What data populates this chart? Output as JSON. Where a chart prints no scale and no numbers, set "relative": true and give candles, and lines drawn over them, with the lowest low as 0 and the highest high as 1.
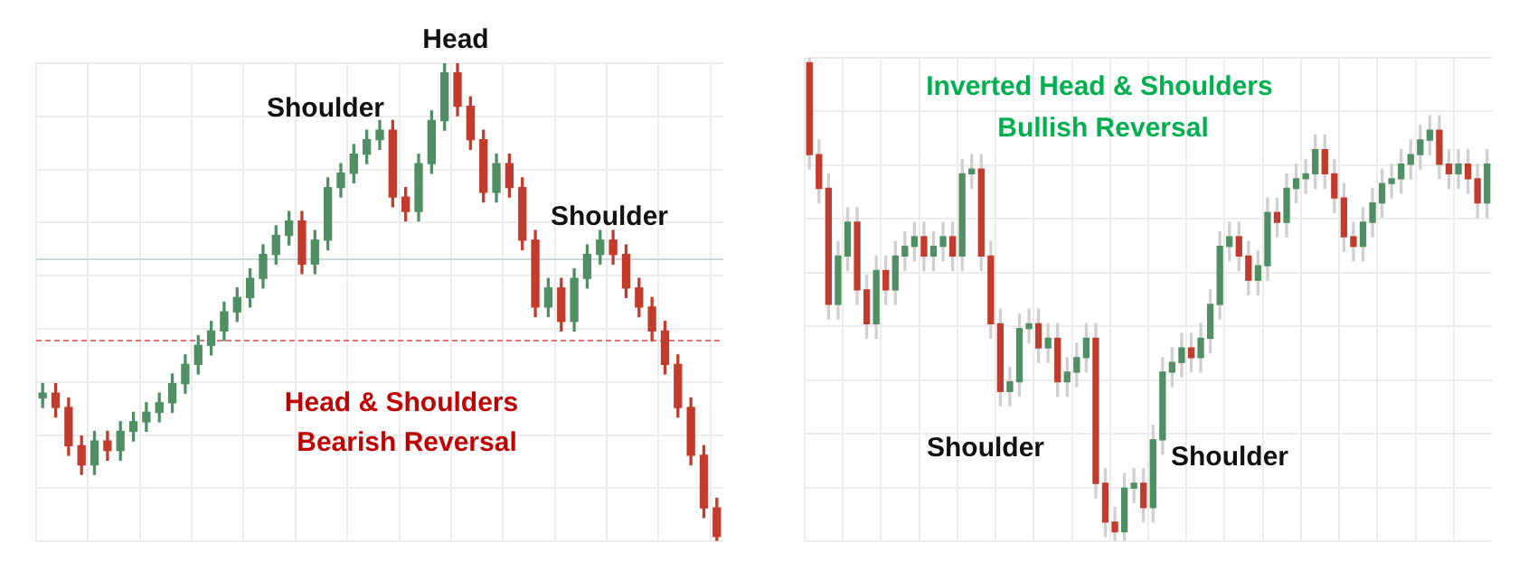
{
  "chart_data": [
    {
      "type": "candlestick",
      "relative": true,
      "grid": true,
      "legend": false,
      "categories": [
        null,
        null,
        null,
        null,
        null,
        null,
        null,
        null,
        null,
        null,
        null,
        null,
        null,
        null,
        null,
        null,
        null,
        null,
        null,
        null,
        null,
        null,
        null,
        null,
        null,
        null,
        null,
        null,
        null,
        null,
        null,
        null,
        null,
        null,
        null,
        null,
        null,
        null,
        null,
        null,
        null,
        null,
        null,
        null,
        null,
        null,
        null,
        null,
        null,
        null,
        null,
        null,
        null
      ],
      "ohlc": [
        [
          0.3,
          0.33,
          0.28,
          0.31
        ],
        [
          0.31,
          0.33,
          0.26,
          0.28
        ],
        [
          0.28,
          0.3,
          0.18,
          0.2
        ],
        [
          0.2,
          0.22,
          0.14,
          0.16
        ],
        [
          0.16,
          0.23,
          0.14,
          0.21
        ],
        [
          0.21,
          0.23,
          0.17,
          0.19
        ],
        [
          0.19,
          0.25,
          0.17,
          0.23
        ],
        [
          0.23,
          0.27,
          0.21,
          0.25
        ],
        [
          0.25,
          0.29,
          0.23,
          0.27
        ],
        [
          0.27,
          0.31,
          0.25,
          0.29
        ],
        [
          0.29,
          0.35,
          0.27,
          0.33
        ],
        [
          0.33,
          0.39,
          0.31,
          0.37
        ],
        [
          0.37,
          0.43,
          0.35,
          0.41
        ],
        [
          0.41,
          0.46,
          0.39,
          0.44
        ],
        [
          0.44,
          0.5,
          0.42,
          0.48
        ],
        [
          0.48,
          0.53,
          0.46,
          0.51
        ],
        [
          0.51,
          0.57,
          0.49,
          0.55
        ],
        [
          0.55,
          0.62,
          0.53,
          0.6
        ],
        [
          0.6,
          0.66,
          0.58,
          0.64
        ],
        [
          0.64,
          0.69,
          0.62,
          0.67
        ],
        [
          0.67,
          0.69,
          0.56,
          0.58
        ],
        [
          0.58,
          0.65,
          0.56,
          0.63
        ],
        [
          0.63,
          0.76,
          0.61,
          0.74
        ],
        [
          0.74,
          0.79,
          0.72,
          0.77
        ],
        [
          0.77,
          0.83,
          0.75,
          0.81
        ],
        [
          0.81,
          0.86,
          0.79,
          0.84
        ],
        [
          0.84,
          0.88,
          0.82,
          0.86
        ],
        [
          0.86,
          0.88,
          0.7,
          0.72
        ],
        [
          0.72,
          0.74,
          0.67,
          0.69
        ],
        [
          0.69,
          0.81,
          0.67,
          0.79
        ],
        [
          0.79,
          0.9,
          0.77,
          0.88
        ],
        [
          0.88,
          1,
          0.86,
          0.98
        ],
        [
          0.98,
          1,
          0.89,
          0.91
        ],
        [
          0.91,
          0.93,
          0.82,
          0.84
        ],
        [
          0.84,
          0.86,
          0.71,
          0.73
        ],
        [
          0.73,
          0.81,
          0.71,
          0.79
        ],
        [
          0.79,
          0.81,
          0.72,
          0.74
        ],
        [
          0.74,
          0.76,
          0.61,
          0.63
        ],
        [
          0.63,
          0.65,
          0.47,
          0.49
        ],
        [
          0.49,
          0.55,
          0.47,
          0.53
        ],
        [
          0.53,
          0.55,
          0.44,
          0.46
        ],
        [
          0.46,
          0.57,
          0.44,
          0.55
        ],
        [
          0.55,
          0.62,
          0.53,
          0.6
        ],
        [
          0.6,
          0.65,
          0.58,
          0.63
        ],
        [
          0.63,
          0.65,
          0.58,
          0.6
        ],
        [
          0.6,
          0.62,
          0.51,
          0.53
        ],
        [
          0.53,
          0.55,
          0.47,
          0.49
        ],
        [
          0.49,
          0.51,
          0.42,
          0.44
        ],
        [
          0.44,
          0.46,
          0.35,
          0.37
        ],
        [
          0.37,
          0.39,
          0.26,
          0.28
        ],
        [
          0.28,
          0.3,
          0.16,
          0.18
        ],
        [
          0.18,
          0.2,
          0.05,
          0.07
        ],
        [
          0.07,
          0.09,
          0,
          0.01
        ]
      ],
      "ref_lines": [
        {
          "axis": "y",
          "value": 0.42,
          "color": "#e57373",
          "line_style": "dashed"
        },
        {
          "axis": "y",
          "value": 0.59,
          "color": "#cfd8dc",
          "line_style": "solid"
        }
      ],
      "annotations": [
        "Shoulder",
        "Head",
        "Shoulder",
        "Head & Shoulders",
        "Bearish Reversal"
      ]
    },
    {
      "type": "candlestick",
      "relative": true,
      "grid": true,
      "legend": false,
      "categories": [
        null,
        null,
        null,
        null,
        null,
        null,
        null,
        null,
        null,
        null,
        null,
        null,
        null,
        null,
        null,
        null,
        null,
        null,
        null,
        null,
        null,
        null,
        null,
        null,
        null,
        null,
        null,
        null,
        null,
        null,
        null,
        null,
        null,
        null,
        null,
        null,
        null,
        null,
        null,
        null,
        null,
        null,
        null,
        null,
        null,
        null,
        null,
        null,
        null,
        null,
        null,
        null,
        null,
        null,
        null,
        null,
        null,
        null,
        null,
        null,
        null,
        null,
        null,
        null,
        null,
        null,
        null,
        null,
        null,
        null,
        null,
        null
      ],
      "ohlc": [
        [
          0.99,
          1,
          0.77,
          0.8
        ],
        [
          0.8,
          0.83,
          0.7,
          0.73
        ],
        [
          0.73,
          0.76,
          0.46,
          0.49
        ],
        [
          0.49,
          0.62,
          0.46,
          0.59
        ],
        [
          0.59,
          0.69,
          0.56,
          0.66
        ],
        [
          0.66,
          0.69,
          0.49,
          0.52
        ],
        [
          0.52,
          0.55,
          0.42,
          0.45
        ],
        [
          0.45,
          0.59,
          0.42,
          0.56
        ],
        [
          0.56,
          0.59,
          0.49,
          0.52
        ],
        [
          0.52,
          0.62,
          0.49,
          0.59
        ],
        [
          0.59,
          0.64,
          0.56,
          0.61
        ],
        [
          0.61,
          0.66,
          0.58,
          0.63
        ],
        [
          0.63,
          0.66,
          0.56,
          0.59
        ],
        [
          0.59,
          0.64,
          0.56,
          0.61
        ],
        [
          0.61,
          0.66,
          0.58,
          0.63
        ],
        [
          0.63,
          0.66,
          0.56,
          0.59
        ],
        [
          0.59,
          0.79,
          0.56,
          0.76
        ],
        [
          0.76,
          0.8,
          0.73,
          0.77
        ],
        [
          0.77,
          0.8,
          0.56,
          0.59
        ],
        [
          0.59,
          0.62,
          0.42,
          0.45
        ],
        [
          0.45,
          0.48,
          0.28,
          0.31
        ],
        [
          0.31,
          0.36,
          0.28,
          0.33
        ],
        [
          0.33,
          0.47,
          0.3,
          0.44
        ],
        [
          0.44,
          0.48,
          0.41,
          0.45
        ],
        [
          0.45,
          0.48,
          0.37,
          0.4
        ],
        [
          0.4,
          0.45,
          0.37,
          0.42
        ],
        [
          0.42,
          0.45,
          0.3,
          0.33
        ],
        [
          0.33,
          0.38,
          0.3,
          0.35
        ],
        [
          0.35,
          0.41,
          0.32,
          0.38
        ],
        [
          0.38,
          0.45,
          0.35,
          0.42
        ],
        [
          0.42,
          0.45,
          0.09,
          0.12
        ],
        [
          0.12,
          0.15,
          0.01,
          0.04
        ],
        [
          0.04,
          0.07,
          0,
          0.02
        ],
        [
          0.02,
          0.14,
          0,
          0.11
        ],
        [
          0.11,
          0.15,
          0.08,
          0.12
        ],
        [
          0.12,
          0.15,
          0.04,
          0.07
        ],
        [
          0.07,
          0.24,
          0.04,
          0.21
        ],
        [
          0.21,
          0.38,
          0.18,
          0.35
        ],
        [
          0.35,
          0.4,
          0.32,
          0.37
        ],
        [
          0.37,
          0.43,
          0.34,
          0.4
        ],
        [
          0.4,
          0.43,
          0.35,
          0.38
        ],
        [
          0.38,
          0.45,
          0.35,
          0.42
        ],
        [
          0.42,
          0.52,
          0.39,
          0.49
        ],
        [
          0.49,
          0.64,
          0.46,
          0.61
        ],
        [
          0.61,
          0.66,
          0.58,
          0.63
        ],
        [
          0.63,
          0.66,
          0.56,
          0.59
        ],
        [
          0.59,
          0.62,
          0.51,
          0.54
        ],
        [
          0.54,
          0.6,
          0.51,
          0.57
        ],
        [
          0.57,
          0.71,
          0.54,
          0.68
        ],
        [
          0.68,
          0.71,
          0.63,
          0.66
        ],
        [
          0.66,
          0.76,
          0.63,
          0.73
        ],
        [
          0.73,
          0.78,
          0.7,
          0.75
        ],
        [
          0.75,
          0.79,
          0.72,
          0.76
        ],
        [
          0.76,
          0.84,
          0.73,
          0.81
        ],
        [
          0.81,
          0.84,
          0.73,
          0.76
        ],
        [
          0.76,
          0.79,
          0.68,
          0.71
        ],
        [
          0.71,
          0.74,
          0.6,
          0.63
        ],
        [
          0.63,
          0.66,
          0.58,
          0.61
        ],
        [
          0.61,
          0.69,
          0.58,
          0.66
        ],
        [
          0.66,
          0.73,
          0.63,
          0.7
        ],
        [
          0.7,
          0.77,
          0.67,
          0.74
        ],
        [
          0.74,
          0.78,
          0.71,
          0.75
        ],
        [
          0.75,
          0.81,
          0.72,
          0.78
        ],
        [
          0.78,
          0.83,
          0.75,
          0.8
        ],
        [
          0.8,
          0.86,
          0.77,
          0.83
        ],
        [
          0.83,
          0.88,
          0.8,
          0.85
        ],
        [
          0.85,
          0.88,
          0.75,
          0.78
        ],
        [
          0.78,
          0.81,
          0.73,
          0.76
        ],
        [
          0.76,
          0.81,
          0.73,
          0.78
        ],
        [
          0.78,
          0.81,
          0.72,
          0.75
        ],
        [
          0.75,
          0.78,
          0.67,
          0.7
        ],
        [
          0.7,
          0.81,
          0.67,
          0.78
        ]
      ],
      "annotations": [
        "Inverted Head & Shoulders",
        "Bullish Reversal",
        "Shoulder",
        "Shoulder"
      ]
    }
  ]
}
